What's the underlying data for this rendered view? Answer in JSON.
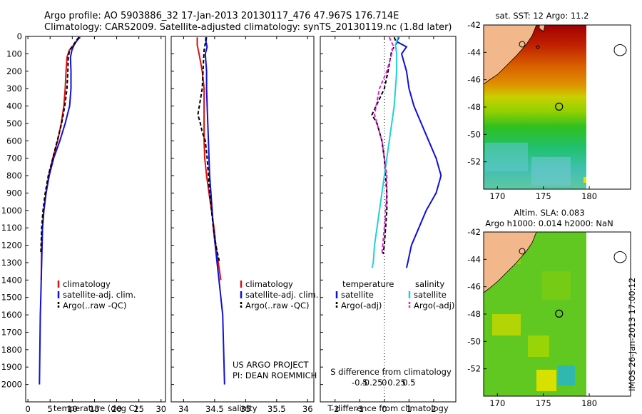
{
  "header": {
    "line1": "Argo profile: AO 5903886_32 17-Jan-2013 20130117_476 47.967S 176.714E",
    "line2": "Climatology: CARS2009. Satellite-adjusted climatology: synTS_20130119.nc (1.8d later)"
  },
  "footer": {
    "project": "US ARGO PROJECT",
    "pi": "PI: DEAN ROEMMICH",
    "stamp": "IMOS 26-Jan-2013 17:00:12"
  },
  "colors": {
    "climatology": "#e01010",
    "satellite": "#1010d8",
    "argo": "#000000",
    "sal_satellite": "#20d0d8",
    "sal_argo": "#e020d0",
    "land": "#f2b88c"
  },
  "chart_data": [
    {
      "type": "line",
      "panel": "temperature",
      "xlabel": "temperature (deg C)",
      "ylabel": "",
      "xlim": [
        -0.5,
        31
      ],
      "ylim": [
        2100,
        0
      ],
      "xticks": [
        "0",
        "5",
        "10",
        "15",
        "20",
        "25",
        "30"
      ],
      "yticks": [
        "0",
        "100",
        "200",
        "300",
        "400",
        "500",
        "600",
        "700",
        "800",
        "900",
        "1000",
        "1100",
        "1200",
        "1300",
        "1400",
        "1500",
        "1600",
        "1700",
        "1800",
        "1900",
        "2000"
      ],
      "legend": [
        "climatology",
        "satellite-adj. clim.",
        "Argo(..raw -QC)"
      ],
      "series": [
        {
          "name": "climatology",
          "style": "solid",
          "color": "#e01010",
          "x": [
            11.8,
            11.2,
            10.3,
            9.3,
            8.8,
            8.6,
            8.4,
            8.1,
            7.5,
            6.7,
            5.6,
            4.7,
            4.1,
            3.6,
            3.3,
            3.1,
            3.0
          ],
          "y": [
            5,
            20,
            50,
            80,
            120,
            200,
            300,
            400,
            500,
            600,
            700,
            800,
            900,
            1000,
            1100,
            1200,
            1400
          ]
        },
        {
          "name": "satellite-adj. clim.",
          "style": "solid",
          "color": "#1010d8",
          "x": [
            11.6,
            11.1,
            10.4,
            9.9,
            9.6,
            9.7,
            9.7,
            9.4,
            8.4,
            7.2,
            5.8,
            4.8,
            4.1,
            3.6,
            3.3,
            3.2,
            3.1,
            3.0,
            2.9,
            2.8,
            2.7,
            2.6
          ],
          "y": [
            5,
            20,
            50,
            80,
            120,
            200,
            300,
            400,
            500,
            600,
            700,
            800,
            900,
            1000,
            1100,
            1200,
            1300,
            1400,
            1500,
            1600,
            1800,
            2000
          ]
        },
        {
          "name": "Argo(..raw -QC)",
          "style": "dashed",
          "color": "#000000",
          "x": [
            11.5,
            11.0,
            10.2,
            9.4,
            9.1,
            9.0,
            8.8,
            8.3,
            7.6,
            6.6,
            5.6,
            4.6,
            3.9,
            3.4,
            3.1,
            2.9
          ],
          "y": [
            5,
            20,
            50,
            80,
            120,
            200,
            300,
            400,
            500,
            600,
            700,
            800,
            900,
            1000,
            1100,
            1250
          ]
        }
      ]
    },
    {
      "type": "line",
      "panel": "salinity",
      "xlabel": "salinity",
      "ylabel": "",
      "xlim": [
        33.8,
        36.1
      ],
      "ylim": [
        2100,
        0
      ],
      "xticks": [
        "34",
        "34.5",
        "35",
        "35.5",
        "36"
      ],
      "legend": [
        "climatology",
        "satellite-adj. clim.",
        "Argo(..raw -QC)"
      ],
      "series": [
        {
          "name": "climatology",
          "style": "solid",
          "color": "#e01010",
          "x": [
            34.22,
            34.22,
            34.25,
            34.3,
            34.33,
            34.33,
            34.33,
            34.33,
            34.34,
            34.37,
            34.41,
            34.45,
            34.49,
            34.52,
            34.54,
            34.56,
            34.58,
            34.6
          ],
          "y": [
            5,
            50,
            100,
            200,
            300,
            400,
            500,
            600,
            700,
            800,
            900,
            1000,
            1100,
            1200,
            1250,
            1300,
            1350,
            1400
          ]
        },
        {
          "name": "satellite-adj. clim.",
          "style": "solid",
          "color": "#1010d8",
          "x": [
            34.37,
            34.36,
            34.38,
            34.35,
            34.37,
            34.37,
            34.38,
            34.39,
            34.4,
            34.41,
            34.42,
            34.44,
            34.46,
            34.48,
            34.51,
            34.54,
            34.57,
            34.6,
            34.63,
            34.66
          ],
          "y": [
            5,
            30,
            60,
            100,
            200,
            300,
            400,
            500,
            600,
            700,
            800,
            900,
            1000,
            1100,
            1200,
            1300,
            1400,
            1500,
            1600,
            2000
          ]
        },
        {
          "name": "Argo(..raw -QC)",
          "style": "dashed",
          "color": "#000000",
          "x": [
            34.36,
            34.35,
            34.33,
            34.32,
            34.3,
            34.23,
            34.27,
            34.3,
            34.35,
            34.38,
            34.4,
            34.42,
            34.45,
            34.48,
            34.52,
            34.55,
            34.58
          ],
          "y": [
            5,
            40,
            80,
            150,
            300,
            450,
            500,
            550,
            600,
            700,
            800,
            900,
            1000,
            1100,
            1200,
            1250,
            1300
          ]
        }
      ]
    },
    {
      "type": "line",
      "panel": "difference",
      "xlabel": "T difference from climatology",
      "xlabel2": "S difference from climatology",
      "xlim": [
        -2.6,
        2.9
      ],
      "ylim": [
        2100,
        0
      ],
      "xticks": [
        "-2",
        "-1",
        "0",
        "1",
        "2"
      ],
      "xticks2": [
        "-0.5",
        "-0.25",
        "0",
        "0.25",
        "0.5"
      ],
      "legend_headers": [
        "temperature",
        "salinity"
      ],
      "legend": [
        "satellite",
        "Argo(-adj)",
        "satellite",
        "Argo(-adj)"
      ],
      "series": [
        {
          "name": "satellite",
          "quantity": "temperature",
          "style": "solid",
          "color": "#1010d8",
          "x": [
            0.6,
            0.5,
            0.9,
            0.7,
            0.9,
            1.0,
            1.2,
            1.5,
            1.8,
            2.1,
            2.3,
            2.1,
            1.7,
            1.4,
            1.1,
            0.95,
            0.9
          ],
          "y": [
            5,
            30,
            60,
            100,
            200,
            300,
            400,
            500,
            600,
            700,
            800,
            900,
            1000,
            1100,
            1200,
            1300,
            1330
          ]
        },
        {
          "name": "Argo(-adj)",
          "quantity": "temperature",
          "style": "dashed",
          "color": "#000000",
          "x": [
            0.4,
            0.5,
            0.3,
            0.15,
            0.0,
            -0.5,
            -0.3,
            -0.1,
            0.0,
            0.05,
            0.1,
            0.1,
            0.05,
            0.0,
            -0.05
          ],
          "y": [
            5,
            40,
            80,
            200,
            300,
            450,
            500,
            600,
            700,
            800,
            900,
            1000,
            1100,
            1200,
            1250
          ]
        },
        {
          "name": "satellite",
          "quantity": "salinity",
          "style": "solid",
          "color": "#20d0d8",
          "x": [
            0.55,
            0.45,
            0.5,
            0.5,
            0.45,
            0.4,
            0.3,
            0.2,
            0.1,
            0.0,
            -0.1,
            -0.2,
            -0.3,
            -0.4,
            -0.45,
            -0.5
          ],
          "y": [
            5,
            50,
            100,
            200,
            300,
            400,
            500,
            600,
            700,
            800,
            900,
            1000,
            1100,
            1200,
            1300,
            1330
          ]
        },
        {
          "name": "Argo(-adj)",
          "quantity": "salinity",
          "style": "dashed",
          "color": "#e020d0",
          "x": [
            0.2,
            0.35,
            0.3,
            0.1,
            -0.2,
            -0.4,
            -0.3,
            -0.1,
            0.0,
            0.1,
            0.1,
            0.05,
            0.0,
            -0.1
          ],
          "y": [
            5,
            50,
            100,
            200,
            300,
            450,
            500,
            600,
            700,
            800,
            900,
            1000,
            1100,
            1250
          ]
        }
      ]
    },
    {
      "type": "heatmap",
      "panel": "sst_map",
      "title": "sat. SST: 12 Argo: 11.2",
      "xlim": [
        168.5,
        184.5
      ],
      "ylim": [
        -54,
        -42
      ],
      "xticks": [
        "170",
        "175",
        "180"
      ],
      "yticks": [
        "-42",
        "-44",
        "-46",
        "-48",
        "-50",
        "-52"
      ],
      "argo_position": [
        176.714,
        -47.967
      ]
    },
    {
      "type": "heatmap",
      "panel": "sla_map",
      "title": "Altim. SLA: 0.083",
      "title2": "Argo h1000: 0.014 h2000: NaN",
      "xlim": [
        168.5,
        184.5
      ],
      "ylim": [
        -54,
        -42
      ],
      "xticks": [
        "170",
        "175",
        "180"
      ],
      "yticks": [
        "-42",
        "-44",
        "-46",
        "-48",
        "-50",
        "-52"
      ],
      "argo_position": [
        176.714,
        -47.967
      ]
    }
  ]
}
